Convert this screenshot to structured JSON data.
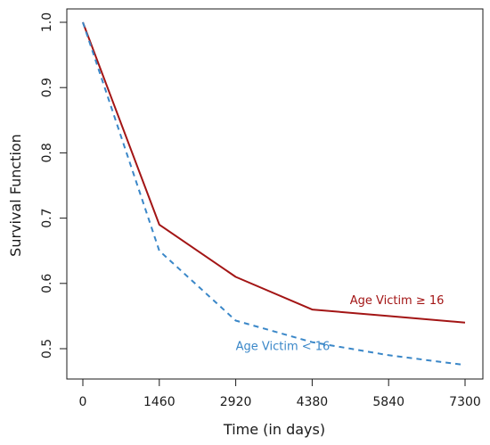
{
  "chart_data": {
    "type": "line",
    "xlabel": "Time (in days)",
    "ylabel": "Survival Function",
    "xlim": [
      0,
      7300
    ],
    "ylim": [
      0.475,
      1.0
    ],
    "xticks": [
      0,
      1460,
      2920,
      4380,
      5840,
      7300
    ],
    "xtick_labels": [
      "0",
      "1460",
      "2920",
      "4380",
      "5840",
      "7300"
    ],
    "yticks": [
      0.5,
      0.6,
      0.7,
      0.8,
      0.9,
      1.0
    ],
    "ytick_labels": [
      "0.5",
      "0.6",
      "0.7",
      "0.8",
      "0.9",
      "1.0"
    ],
    "grid": false,
    "series": [
      {
        "name": "Age Victim ≥ 16",
        "color": "#a31515",
        "line_style": "solid",
        "x": [
          0,
          1460,
          2920,
          4380,
          5840,
          7300
        ],
        "y": [
          1.0,
          0.69,
          0.61,
          0.56,
          0.55,
          0.54
        ]
      },
      {
        "name": "Age Victim < 16",
        "color": "#3a87c8",
        "line_style": "dashed",
        "x": [
          0,
          1460,
          2920,
          4380,
          5840,
          7300
        ],
        "y": [
          1.0,
          0.65,
          0.543,
          0.51,
          0.49,
          0.475
        ]
      }
    ],
    "annotations": [
      {
        "text": "Age Victim  ≥ 16",
        "x": 5100,
        "y": 0.568,
        "color": "#a31515"
      },
      {
        "text": "Age Victim < 16",
        "x": 2920,
        "y": 0.498,
        "color": "#3a87c8"
      }
    ]
  }
}
